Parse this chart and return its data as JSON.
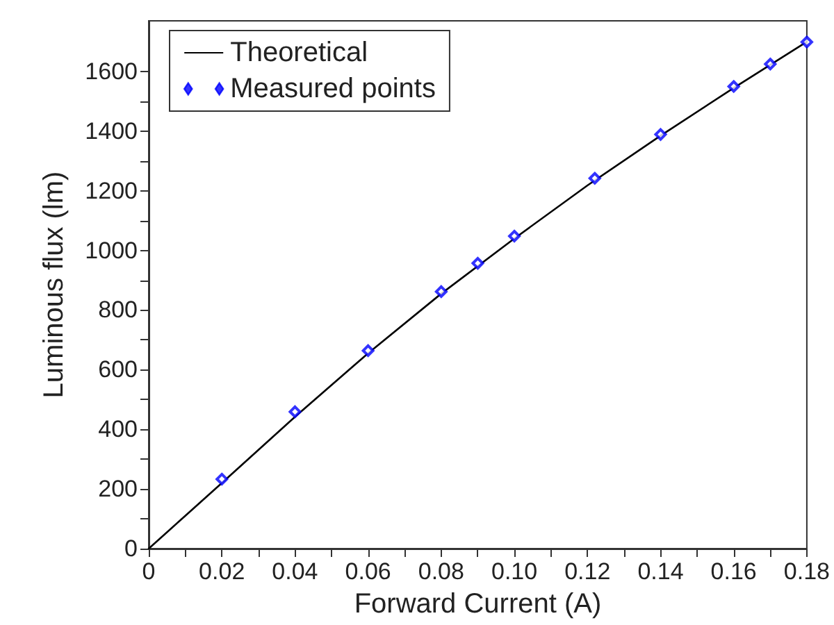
{
  "chart_data": {
    "type": "line",
    "xlabel": "Forward Current (A)",
    "ylabel": "Luminous flux (lm)",
    "xlim": [
      0,
      0.18
    ],
    "xticks": [
      0,
      0.02,
      0.04,
      0.06,
      0.08,
      {
        "value": 0.1,
        "label": "0.10"
      },
      0.12,
      0.14,
      0.16,
      0.18
    ],
    "ylim": [
      0,
      1770
    ],
    "yticks": [
      0,
      200,
      400,
      600,
      800,
      1000,
      1200,
      1400,
      1600
    ],
    "legend": "top left",
    "grid": false,
    "series": [
      {
        "name": "Theoretical",
        "color": "#000000",
        "marker": "none",
        "line_style": "solid",
        "x": [
          0,
          0.01,
          0.02,
          0.04,
          0.06,
          0.08,
          0.1,
          0.12,
          0.14,
          0.16,
          0.18
        ],
        "values": [
          0,
          110,
          220,
          442,
          655,
          855,
          1040,
          1218,
          1385,
          1545,
          1700
        ]
      },
      {
        "name": "Measured points",
        "type": "scatter",
        "color": "#0000ff",
        "marker": "diamond",
        "x": [
          0.02,
          0.04,
          0.06,
          0.08,
          0.09,
          0.1,
          0.122,
          0.14,
          0.16,
          0.17,
          0.18
        ],
        "values": [
          233,
          459,
          664,
          862,
          957,
          1048,
          1242,
          1389,
          1550,
          1625,
          1699
        ]
      }
    ]
  }
}
